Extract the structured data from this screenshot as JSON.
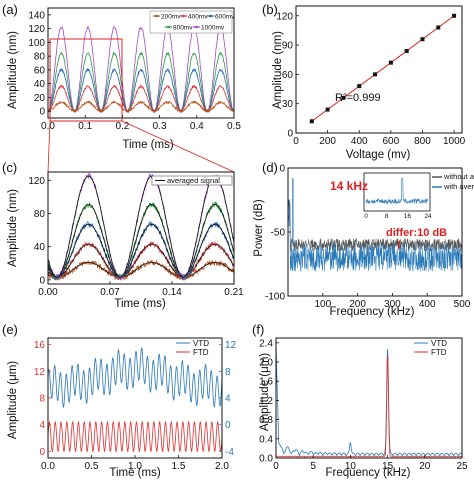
{
  "colors": {
    "c200": "#b5551e",
    "c400": "#d03a3a",
    "c600": "#1f5fb5",
    "c800": "#2a9a3a",
    "c1000": "#a04ac8",
    "vtd": "#2a7ab8",
    "ftd": "#e03030",
    "red": "#e02020",
    "black": "#111111",
    "gray": "#555555"
  },
  "chart_data": [
    {
      "panel": "(a)",
      "type": "line",
      "xlabel": "Time (ms)",
      "ylabel": "Amplitude (nm)",
      "xlim": [
        0,
        0.5
      ],
      "ylim": [
        -10,
        150
      ],
      "xticks": [
        "0.0",
        "0.1",
        "0.2",
        "0.3",
        "0.4",
        "0.5"
      ],
      "yticks": [
        "0",
        "20",
        "40",
        "60",
        "80",
        "100",
        "120",
        "140"
      ],
      "legend_position": "top-right",
      "series": [
        {
          "name": "200mv",
          "color": "#b5551e",
          "amplitude": 13,
          "offset": 0
        },
        {
          "name": "400mv",
          "color": "#d03a3a",
          "amplitude": 36,
          "offset": 0
        },
        {
          "name": "600mv",
          "color": "#1f5fb5",
          "amplitude": 60,
          "offset": 0
        },
        {
          "name": "800mv",
          "color": "#2a9a3a",
          "amplitude": 84,
          "offset": 0
        },
        {
          "name": "1000mv",
          "color": "#a04ac8",
          "amplitude": 122,
          "offset": 0
        }
      ],
      "period_ms": 0.0714
    },
    {
      "panel": "(b)",
      "type": "scatter",
      "xlabel": "Voltage (mv)",
      "ylabel": "Amplitude (nm)",
      "xlim": [
        0,
        1050
      ],
      "ylim": [
        0,
        130
      ],
      "xticks": [
        "0",
        "200",
        "400",
        "600",
        "800",
        "1000"
      ],
      "yticks": [
        "0",
        "30",
        "60",
        "90",
        "120"
      ],
      "x": [
        100,
        200,
        300,
        400,
        500,
        600,
        700,
        800,
        900,
        1000
      ],
      "y": [
        12,
        24,
        36,
        48,
        60,
        72,
        84,
        96,
        108,
        120
      ],
      "annotation": "R²=0.999"
    },
    {
      "panel": "(c)",
      "type": "line",
      "xlabel": "Time (ms)",
      "ylabel": "Amplitude (nm)",
      "xlim": [
        0,
        0.21
      ],
      "ylim": [
        -5,
        130
      ],
      "xticks": [
        "0.00",
        "0.07",
        "0.14",
        "0.21"
      ],
      "yticks": [
        "0",
        "40",
        "80",
        "120"
      ],
      "legend": "averaged signal",
      "amplitudes": [
        18,
        40,
        64,
        88,
        122
      ],
      "period_ms": 0.0714
    },
    {
      "panel": "(d)",
      "type": "line",
      "xlabel": "Frequency (kHz)",
      "ylabel": "Power (dB)",
      "xlim": [
        0,
        500
      ],
      "ylim": [
        -100,
        0
      ],
      "xticks": [
        "100",
        "200",
        "300",
        "400",
        "500"
      ],
      "yticks": [
        "0",
        "-50",
        "-100"
      ],
      "legend": [
        "without average",
        "with average"
      ],
      "peak_label": "14 kHz",
      "diff_label": "differ:10 dB",
      "noise_without_db": -60,
      "noise_with_db": -70,
      "inset": {
        "xlim": [
          0,
          24
        ],
        "xticks": [
          "0",
          "8",
          "16",
          "24"
        ]
      }
    },
    {
      "panel": "(e)",
      "type": "line",
      "xlabel": "Time (ms)",
      "ylabel": "Amplitude (μm)",
      "xlim": [
        0,
        2.0
      ],
      "ylim_left": [
        -1,
        17
      ],
      "ylim_right": [
        -5,
        13
      ],
      "xticks": [
        "0.0",
        "0.5",
        "1.0",
        "1.5",
        "2.0"
      ],
      "yticks_left": [
        "0",
        "4",
        "8",
        "12",
        "16"
      ],
      "yticks_right": [
        "-4",
        "0",
        "4",
        "8",
        "12"
      ],
      "legend": [
        "VTD",
        "FTD"
      ]
    },
    {
      "panel": "(f)",
      "type": "line",
      "xlabel": "Frequency (kHz)",
      "ylabel": "Amplitude (μm)",
      "xlim": [
        0,
        25
      ],
      "ylim": [
        0,
        2.5
      ],
      "xticks": [
        "0",
        "5",
        "10",
        "15",
        "20",
        "25"
      ],
      "yticks": [
        "0.0",
        "0.4",
        "0.8",
        "1.2",
        "1.6",
        "2.0",
        "2.4"
      ],
      "legend": [
        "VTD",
        "FTD"
      ],
      "peak_freq_khz": 15,
      "peak_vtd": 2.3,
      "peak_ftd": 2.15
    }
  ],
  "labels": {
    "a": "(a)",
    "b": "(b)",
    "c": "(c)",
    "d": "(d)",
    "e": "(e)",
    "f": "(f)"
  }
}
